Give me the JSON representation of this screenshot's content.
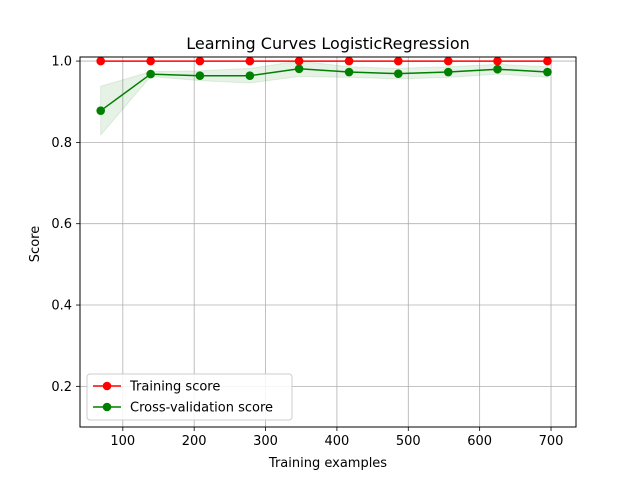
{
  "chart_data": {
    "type": "line",
    "title": "Learning Curves LogisticRegression",
    "xlabel": "Training examples",
    "ylabel": "Score",
    "xlim": [
      40,
      735
    ],
    "ylim": [
      0.1,
      1.01
    ],
    "xticks": [
      100,
      200,
      300,
      400,
      500,
      600,
      700
    ],
    "yticks": [
      0.2,
      0.4,
      0.6,
      0.8,
      1.0
    ],
    "xtick_labels": [
      "100",
      "200",
      "300",
      "400",
      "500",
      "600",
      "700"
    ],
    "ytick_labels": [
      "0.2",
      "0.4",
      "0.6",
      "0.8",
      "1.0"
    ],
    "grid": true,
    "legend_position": "lower-left",
    "x": [
      69,
      139,
      208,
      278,
      347,
      417,
      486,
      556,
      625,
      695
    ],
    "series": [
      {
        "name": "Training score",
        "color": "#ff0000",
        "values": [
          1.0,
          1.0,
          1.0,
          1.0,
          1.0,
          1.0,
          1.0,
          1.0,
          1.0,
          1.0
        ],
        "band_lower": [
          1.0,
          1.0,
          1.0,
          1.0,
          1.0,
          1.0,
          1.0,
          1.0,
          1.0,
          1.0
        ],
        "band_upper": [
          1.0,
          1.0,
          1.0,
          1.0,
          1.0,
          1.0,
          1.0,
          1.0,
          1.0,
          1.0
        ]
      },
      {
        "name": "Cross-validation score",
        "color": "#008000",
        "values": [
          0.878,
          0.968,
          0.964,
          0.964,
          0.981,
          0.973,
          0.969,
          0.973,
          0.98,
          0.973
        ],
        "band_lower": [
          0.818,
          0.962,
          0.952,
          0.946,
          0.962,
          0.96,
          0.956,
          0.96,
          0.968,
          0.96
        ],
        "band_upper": [
          0.938,
          0.974,
          0.976,
          0.982,
          1.0,
          0.986,
          0.982,
          0.986,
          0.992,
          0.986
        ]
      }
    ]
  }
}
